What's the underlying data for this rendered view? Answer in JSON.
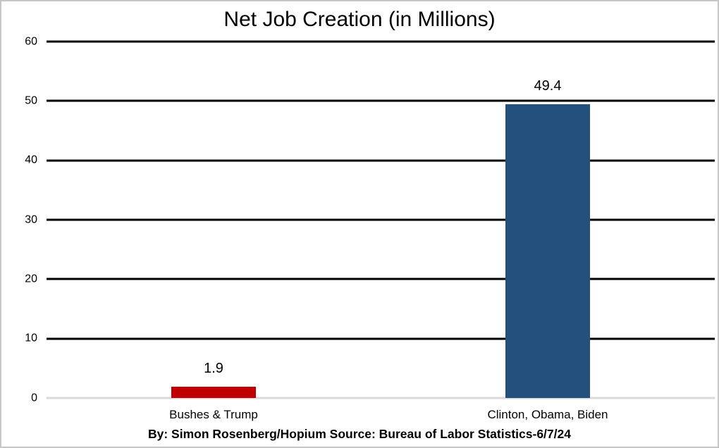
{
  "chart_data": {
    "type": "bar",
    "title": "Net Job Creation (in Millions)",
    "categories": [
      "Bushes & Trump",
      "Clinton, Obama, Biden"
    ],
    "values": [
      1.9,
      49.4
    ],
    "value_labels": [
      "1.9",
      "49.4"
    ],
    "bar_colors": [
      "#c00000",
      "#24507e"
    ],
    "xlabel": "",
    "ylabel": "",
    "ylim": [
      0,
      60
    ],
    "yticks": [
      0,
      10,
      20,
      30,
      40,
      50,
      60
    ],
    "grid": "horizontal-black",
    "zero_line_color": "#d9d9d9",
    "legend": "none"
  },
  "footer": {
    "credit": "By: Simon Rosenberg/Hopium Source: Bureau of Labor Statistics-6/7/24"
  }
}
